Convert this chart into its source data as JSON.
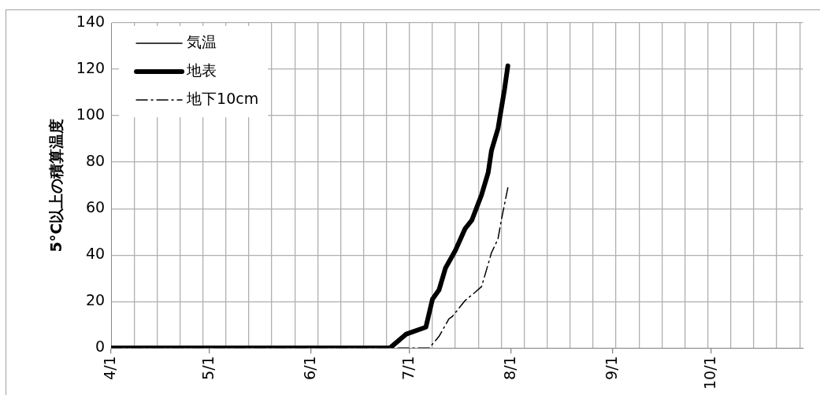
{
  "chart_data": {
    "type": "line",
    "ylabel": "5°C以上の積算温度",
    "xlim": [
      "--04-01",
      "--10-29"
    ],
    "xticks": [
      {
        "value": "--04-01",
        "label": "4/1"
      },
      {
        "value": "--04-08",
        "label": null
      },
      {
        "value": "--04-15",
        "label": null
      },
      {
        "value": "--04-22",
        "label": null
      },
      {
        "value": "--04-29",
        "label": null
      },
      {
        "value": "--05-01",
        "label": "5/1"
      },
      {
        "value": "--05-06",
        "label": null
      },
      {
        "value": "--05-13",
        "label": null
      },
      {
        "value": "--05-20",
        "label": null
      },
      {
        "value": "--05-27",
        "label": null
      },
      {
        "value": "--06-01",
        "label": "6/1"
      },
      {
        "value": "--06-03",
        "label": null
      },
      {
        "value": "--06-10",
        "label": null
      },
      {
        "value": "--06-17",
        "label": null
      },
      {
        "value": "--06-24",
        "label": null
      },
      {
        "value": "--07-01",
        "label": "7/1"
      },
      {
        "value": "--07-01",
        "label": null
      },
      {
        "value": "--07-08",
        "label": null
      },
      {
        "value": "--07-15",
        "label": null
      },
      {
        "value": "--07-22",
        "label": null
      },
      {
        "value": "--07-29",
        "label": null
      },
      {
        "value": "--08-01",
        "label": "8/1"
      },
      {
        "value": "--08-05",
        "label": null
      },
      {
        "value": "--08-12",
        "label": null
      },
      {
        "value": "--08-19",
        "label": null
      },
      {
        "value": "--08-26",
        "label": null
      },
      {
        "value": "--09-01",
        "label": "9/1"
      },
      {
        "value": "--09-02",
        "label": null
      },
      {
        "value": "--09-09",
        "label": null
      },
      {
        "value": "--09-16",
        "label": null
      },
      {
        "value": "--09-23",
        "label": null
      },
      {
        "value": "--09-30",
        "label": null
      },
      {
        "value": "--10-01",
        "label": "10/1"
      },
      {
        "value": "--10-07",
        "label": null
      },
      {
        "value": "--10-14",
        "label": null
      },
      {
        "value": "--10-21",
        "label": null
      },
      {
        "value": "--10-28",
        "label": null
      }
    ],
    "ylim": [
      0,
      140
    ],
    "yticks": [
      0,
      20,
      40,
      60,
      80,
      100,
      120,
      140
    ],
    "grid": true,
    "legend": "top left",
    "series": [
      {
        "name": "気温",
        "color": "#000000",
        "line_style": "solid"
      },
      {
        "name": "地表",
        "color": "#000000",
        "line_style": "solid",
        "x": [
          "--04-01",
          "--06-25",
          "--06-30",
          "--07-06",
          "--07-08",
          "--07-10",
          "--07-12",
          "--07-15",
          "--07-18",
          "--07-20",
          "--07-23",
          "--07-25",
          "--07-26",
          "--07-28",
          "--07-30",
          "--07-31"
        ],
        "values": [
          0,
          0,
          6,
          9,
          21,
          25,
          34.5,
          42,
          51.5,
          55,
          66,
          75.5,
          85,
          94.5,
          111.5,
          121.5
        ]
      },
      {
        "name": "地下10cm",
        "color": "#000000",
        "line_style": "dashdot",
        "x": [
          "--04-01",
          "--07-07",
          "--07-10",
          "--07-13",
          "--07-14",
          "--07-18",
          "--07-21",
          "--07-23",
          "--07-26",
          "--07-28",
          "--07-29",
          "--07-31"
        ],
        "values": [
          0,
          0,
          5,
          12.5,
          13.5,
          20.5,
          24,
          26.5,
          41,
          47,
          55,
          69
        ]
      }
    ]
  }
}
